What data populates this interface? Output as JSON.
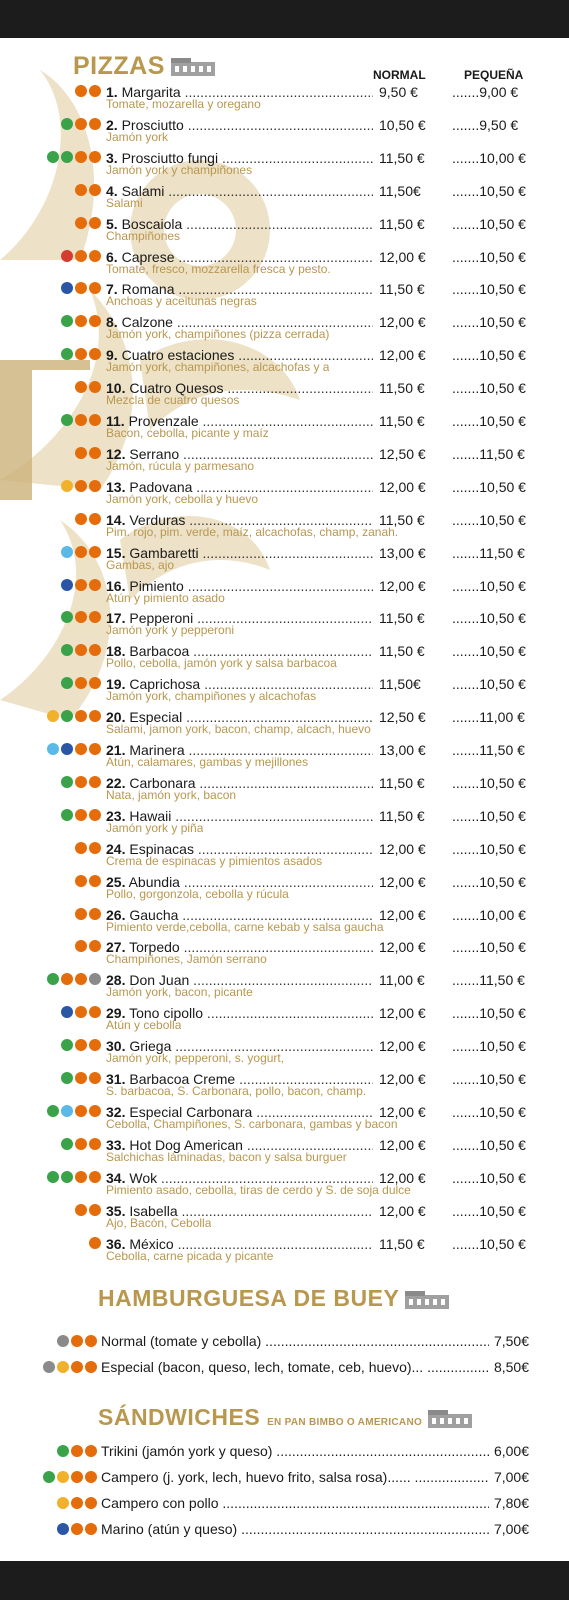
{
  "pizzas_title": "PIZZAS",
  "columns": {
    "normal": "NORMAL",
    "small": "PEQUEÑA"
  },
  "pizzas": [
    {
      "num": "1.",
      "name": "Margarita",
      "desc": "Tomate, mozarella y oregano",
      "normal": "9,50 €",
      "small": "9,00 €",
      "icons": [
        "o",
        "o"
      ]
    },
    {
      "num": "2.",
      "name": "Prosciutto",
      "desc": "Jamón york",
      "normal": "10,50 €",
      "small": "9,50 €",
      "icons": [
        "g",
        "o",
        "o"
      ]
    },
    {
      "num": "3.",
      "name": "Prosciutto fungi",
      "desc": "Jamón york y champiñones",
      "normal": "11,50 €",
      "small": "10,00 €",
      "icons": [
        "g",
        "g",
        "o",
        "o"
      ]
    },
    {
      "num": "4.",
      "name": "Salami",
      "desc": "Salami",
      "normal": "11,50€",
      "small": "10,50 €",
      "icons": [
        "o",
        "o"
      ]
    },
    {
      "num": "5.",
      "name": "Boscaiola",
      "desc": "Champiñones",
      "normal": "11,50 €",
      "small": "10,50 €",
      "icons": [
        "o",
        "o"
      ]
    },
    {
      "num": "6.",
      "name": "Caprese",
      "desc": "Tomate, fresco, mozzarella fresca y pesto.",
      "normal": "12,00 €",
      "small": "10,50 €",
      "icons": [
        "r",
        "o",
        "o"
      ]
    },
    {
      "num": "7.",
      "name": "Romana",
      "desc": "Anchoas y aceitunas negras",
      "normal": "11,50 €",
      "small": "10,50 €",
      "icons": [
        "b",
        "o",
        "o"
      ]
    },
    {
      "num": "8.",
      "name": "Calzone",
      "desc": "Jamón york, champiñones (pizza cerrada)",
      "normal": "12,00 €",
      "small": "10,50 €",
      "icons": [
        "g",
        "o",
        "o"
      ]
    },
    {
      "num": "9.",
      "name": "Cuatro estaciones",
      "desc": "Jamón york, champiñones, alcachofas y a",
      "normal": "12,00 €",
      "small": "10,50 €",
      "icons": [
        "g",
        "o",
        "o"
      ]
    },
    {
      "num": "10.",
      "name": "Cuatro Quesos",
      "desc": "Mezcla de cuatro quesos",
      "normal": "11,50 €",
      "small": "10,50 €",
      "icons": [
        "o",
        "o"
      ]
    },
    {
      "num": "11.",
      "name": "Provenzale",
      "desc": "Bacon, cebolla, picante y maíz",
      "normal": "11,50 €",
      "small": "10,50 €",
      "icons": [
        "g",
        "o",
        "o"
      ]
    },
    {
      "num": "12.",
      "name": "Serrano",
      "desc": "Jamón, rúcula y parmesano",
      "normal": "12,50 €",
      "small": "11,50 €",
      "icons": [
        "o",
        "o"
      ]
    },
    {
      "num": "13.",
      "name": "Padovana",
      "desc": "Jamón york, cebolla y huevo",
      "normal": "12,00 €",
      "small": "10,50 €",
      "icons": [
        "y",
        "o",
        "o"
      ]
    },
    {
      "num": "14.",
      "name": "Verduras",
      "desc": "Pim. rojo, pim. verde, maíz, alcachofas, champ, zanah.",
      "normal": "11,50 €",
      "small": "10,50 €",
      "icons": [
        "o",
        "o"
      ]
    },
    {
      "num": "15.",
      "name": "Gambaretti",
      "desc": "Gambas, ajo",
      "normal": "13,00 €",
      "small": "11,50 €",
      "icons": [
        "c",
        "o",
        "o"
      ]
    },
    {
      "num": "16.",
      "name": "Pimiento",
      "desc": "Atún y pimiento asado",
      "normal": "12,00 €",
      "small": "10,50 €",
      "icons": [
        "b",
        "o",
        "o"
      ]
    },
    {
      "num": "17.",
      "name": "Pepperoni",
      "desc": "Jamón york y pepperoni",
      "normal": "11,50 €",
      "small": "10,50 €",
      "icons": [
        "g",
        "o",
        "o"
      ]
    },
    {
      "num": "18.",
      "name": "Barbacoa",
      "desc": "Pollo, cebolla, jamón york y salsa barbacoa",
      "normal": "11,50 €",
      "small": "10,50 €",
      "icons": [
        "g",
        "o",
        "o"
      ]
    },
    {
      "num": "19.",
      "name": "Caprichosa",
      "desc": "Jamón york, champiñones y alcachofas",
      "normal": "11,50€",
      "small": "10,50 €",
      "icons": [
        "g",
        "o",
        "o"
      ]
    },
    {
      "num": "20.",
      "name": "Especial",
      "desc": "Salami, jamon york, bacon, champ, alcach, huevo",
      "normal": "12,50 €",
      "small": "11,00 €",
      "icons": [
        "y",
        "g",
        "o",
        "o"
      ]
    },
    {
      "num": "21.",
      "name": "Marinera",
      "desc": "Atún, calamares, gambas y mejillones",
      "normal": "13,00 €",
      "small": "11,50 €",
      "icons": [
        "c",
        "b",
        "o",
        "o"
      ]
    },
    {
      "num": "22.",
      "name": "Carbonara",
      "desc": "Nata, jamón york, bacon",
      "normal": "11,50 €",
      "small": "10,50 €",
      "icons": [
        "g",
        "o",
        "o"
      ]
    },
    {
      "num": "23.",
      "name": "Hawaii",
      "desc": "Jamón york y piña",
      "normal": "11,50 €",
      "small": "10,50 €",
      "icons": [
        "g",
        "o",
        "o"
      ]
    },
    {
      "num": "24.",
      "name": "Espinacas",
      "desc": "Crema de espinacas y pimientos asados",
      "normal": "12,00 €",
      "small": "10,50 €",
      "icons": [
        "o",
        "o"
      ]
    },
    {
      "num": "25.",
      "name": "Abundia",
      "desc": "Pollo, gorgonzola, cebolla y rúcula",
      "normal": "12,00 €",
      "small": "10,50 €",
      "icons": [
        "o",
        "o"
      ]
    },
    {
      "num": "26.",
      "name": "Gaucha",
      "desc": "Pimiento verde,cebolla, carne kebab y salsa gaucha",
      "normal": "12,00 €",
      "small": "10,00 €",
      "icons": [
        "o",
        "o"
      ]
    },
    {
      "num": "27.",
      "name": "Torpedo",
      "desc": "Champiñones, Jamón serrano",
      "normal": "12,00 €",
      "small": "10,50 €",
      "icons": [
        "o",
        "o"
      ]
    },
    {
      "num": "28.",
      "name": "Don Juan",
      "desc": "Jamón york, bacon, picante",
      "normal": "11,00 €",
      "small": "11,50 €",
      "icons": [
        "g",
        "o",
        "o",
        "gr"
      ]
    },
    {
      "num": "29.",
      "name": "Tono cipollo",
      "desc": "Atún y cebolla",
      "normal": "12,00 €",
      "small": "10,50 €",
      "icons": [
        "b",
        "o",
        "o"
      ]
    },
    {
      "num": "30.",
      "name": "Griega",
      "desc": "Jamón york, pepperoni, s. yogurt,",
      "normal": "12,00 €",
      "small": "10,50 €",
      "icons": [
        "g",
        "o",
        "o"
      ]
    },
    {
      "num": "31.",
      "name": "Barbacoa Creme",
      "desc": "S. barbacoa, S. Carbonara, pollo, bacon, champ.",
      "normal": "12,00 €",
      "small": "10,50 €",
      "icons": [
        "g",
        "o",
        "o"
      ]
    },
    {
      "num": "32.",
      "name": "Especial Carbonara",
      "desc": "Cebolla, Champiñones, S. carbonara, gambas y bacon",
      "normal": "12,00 €",
      "small": "10,50 €",
      "icons": [
        "g",
        "c",
        "o",
        "o"
      ]
    },
    {
      "num": "33.",
      "name": "Hot Dog American",
      "desc": "Salchichas láminadas, bacon y salsa burguer",
      "normal": "12,00 €",
      "small": "10,50 €",
      "icons": [
        "g",
        "o",
        "o"
      ]
    },
    {
      "num": "34.",
      "name": "Wok",
      "desc": "Pimiento asado, cebolla, tiras de cerdo y S. de soja dulce",
      "normal": "12,00 €",
      "small": "10,50 €",
      "icons": [
        "g",
        "g",
        "o",
        "o"
      ]
    },
    {
      "num": "35.",
      "name": "Isabella",
      "desc": "Ajo, Bacón, Cebolla",
      "normal": "12,00 €",
      "small": "10,50 €",
      "icons": [
        "o",
        "o"
      ]
    },
    {
      "num": "36.",
      "name": "México",
      "desc": "Cebolla, carne picada y picante",
      "normal": "11,50 €",
      "small": "10,50 €",
      "icons": [
        "o"
      ]
    }
  ],
  "burgers_title": "HAMBURGUESA DE BUEY",
  "burgers": [
    {
      "name": "Normal (tomate y cebolla)",
      "price": "7,50€",
      "icons": [
        "gr",
        "o",
        "o"
      ]
    },
    {
      "name": "Especial (bacon, queso, lech, tomate, ceb, huevo)...",
      "price": "8,50€",
      "icons": [
        "gr",
        "y",
        "o",
        "o"
      ]
    }
  ],
  "sandwiches_title": "SÁNDWICHES",
  "sandwiches_sub": "EN PAN BIMBO O AMERICANO",
  "sandwiches": [
    {
      "name": "Trikini (jamón york y queso)",
      "price": "6,00€",
      "icons": [
        "g",
        "o",
        "o"
      ]
    },
    {
      "name": "Campero (j. york, lech, huevo frito, salsa rosa)......",
      "price": "7,00€",
      "icons": [
        "g",
        "y",
        "o",
        "o"
      ]
    },
    {
      "name": "Campero con pollo",
      "price": "7,80€",
      "icons": [
        "y",
        "o",
        "o"
      ]
    },
    {
      "name": "Marino (atún y queso)",
      "price": "7,00€",
      "icons": [
        "b",
        "o",
        "o"
      ]
    }
  ]
}
